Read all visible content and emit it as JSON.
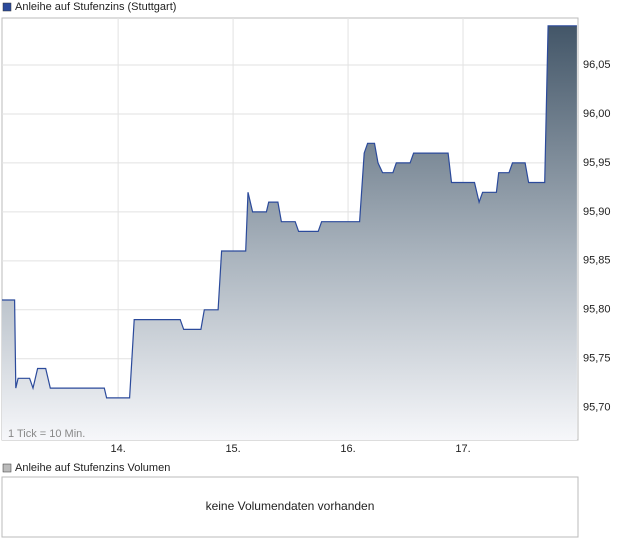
{
  "chart_data": {
    "type": "area",
    "series": [
      {
        "name": "Anleihe auf Stufenzins (Stuttgart)",
        "color": "#2b4a9b",
        "values": [
          95.81,
          95.81,
          95.72,
          95.73,
          95.73,
          95.72,
          95.74,
          95.74,
          95.72,
          95.72,
          95.71,
          95.71,
          95.79,
          95.79,
          95.78,
          95.78,
          95.8,
          95.8,
          95.86,
          95.86,
          95.92,
          95.9,
          95.9,
          95.91,
          95.91,
          95.89,
          95.89,
          95.88,
          95.88,
          95.89,
          95.89,
          95.96,
          95.97,
          95.97,
          95.95,
          95.94,
          95.94,
          95.95,
          95.95,
          95.96,
          95.96,
          95.93,
          95.93,
          95.91,
          95.92,
          95.92,
          95.94,
          95.94,
          95.95,
          95.95,
          95.93,
          95.93,
          96.09,
          96.09
        ]
      }
    ],
    "x": [
      12.99,
      13.1,
      13.11,
      13.13,
      13.23,
      13.26,
      13.3,
      13.37,
      13.41,
      13.88,
      13.9,
      14.1,
      14.14,
      14.54,
      14.57,
      14.72,
      14.75,
      14.87,
      14.9,
      15.11,
      15.13,
      15.17,
      15.29,
      15.31,
      15.39,
      15.42,
      15.54,
      15.57,
      15.74,
      15.77,
      16.1,
      16.14,
      16.17,
      16.23,
      16.26,
      16.3,
      16.39,
      16.42,
      16.54,
      16.57,
      16.87,
      16.9,
      17.1,
      17.14,
      17.17,
      17.29,
      17.31,
      17.4,
      17.43,
      17.54,
      17.57,
      17.71,
      17.74,
      17.99
    ],
    "xlim": [
      12.99,
      18.0
    ],
    "xticks": [
      {
        "value": 14,
        "label": "14."
      },
      {
        "value": 15,
        "label": "15."
      },
      {
        "value": 16,
        "label": "16."
      },
      {
        "value": 17,
        "label": "17."
      }
    ],
    "ylim": [
      95.667,
      96.098
    ],
    "yticks": [
      {
        "value": 95.7,
        "label": "95,70"
      },
      {
        "value": 95.75,
        "label": "95,75"
      },
      {
        "value": 95.8,
        "label": "95,80"
      },
      {
        "value": 95.85,
        "label": "95,85"
      },
      {
        "value": 95.9,
        "label": "95,90"
      },
      {
        "value": 95.95,
        "label": "95,95"
      },
      {
        "value": 96.0,
        "label": "96,00"
      },
      {
        "value": 96.05,
        "label": "96,05"
      }
    ],
    "grid": true,
    "annotation": "1 Tick = 10 Min."
  },
  "volume_panel": {
    "legend": "Anleihe auf Stufenzins Volumen",
    "message": "keine Volumendaten vorhanden"
  }
}
